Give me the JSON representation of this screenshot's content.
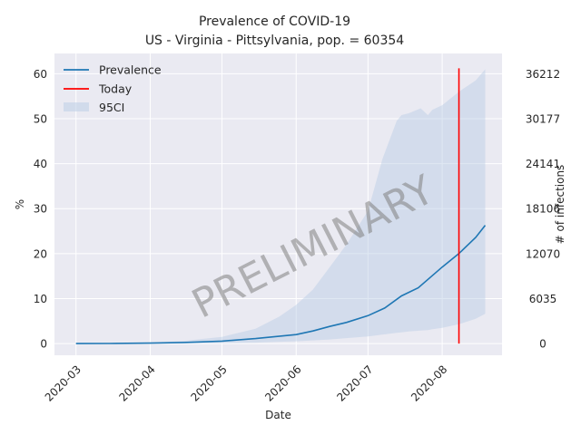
{
  "chart_data": {
    "type": "line",
    "title": "Prevalence of COVID-19",
    "subtitle": "US - Virginia - Pittsylvania, pop. = 60354",
    "xlabel": "Date",
    "ylabel": "%",
    "ylabel_right": "# of infections",
    "xlim": [
      "2020-02-21",
      "2020-08-26"
    ],
    "ylim": [
      -2.6,
      64.5
    ],
    "x_ticks": [
      "2020-03",
      "2020-04",
      "2020-05",
      "2020-06",
      "2020-07",
      "2020-08"
    ],
    "y_ticks": [
      0,
      10,
      20,
      30,
      40,
      50,
      60
    ],
    "y_right_ticks": [
      "0",
      "6035",
      "12070",
      "18106",
      "24141",
      "30177",
      "36212"
    ],
    "grid": true,
    "legend_position": "top-left",
    "colors": {
      "prevalence": "#1f77b4",
      "today": "#ff0000",
      "ci": "#b8cce4",
      "background": "#eaeaf2",
      "grid": "#ffffff"
    },
    "watermark": "PRELIMINARY",
    "series": [
      {
        "name": "Prevalence",
        "kind": "line",
        "x": [
          "2020-03-01",
          "2020-03-15",
          "2020-04-01",
          "2020-04-15",
          "2020-05-01",
          "2020-05-15",
          "2020-06-01",
          "2020-06-08",
          "2020-06-15",
          "2020-06-22",
          "2020-07-01",
          "2020-07-08",
          "2020-07-15",
          "2020-07-22",
          "2020-08-01",
          "2020-08-08",
          "2020-08-15",
          "2020-08-19"
        ],
        "y": [
          0.0,
          0.02,
          0.1,
          0.25,
          0.55,
          1.1,
          2.0,
          2.8,
          3.8,
          4.7,
          6.2,
          7.9,
          10.6,
          12.4,
          17.0,
          20.0,
          23.6,
          26.3
        ]
      },
      {
        "name": "95CI",
        "kind": "band",
        "x": [
          "2020-03-01",
          "2020-03-15",
          "2020-04-01",
          "2020-04-15",
          "2020-05-01",
          "2020-05-15",
          "2020-05-25",
          "2020-06-01",
          "2020-06-08",
          "2020-06-15",
          "2020-06-22",
          "2020-07-01",
          "2020-07-07",
          "2020-07-13",
          "2020-07-15",
          "2020-07-18",
          "2020-07-23",
          "2020-07-26",
          "2020-07-28",
          "2020-08-01",
          "2020-08-08",
          "2020-08-15",
          "2020-08-19"
        ],
        "lower": [
          0.0,
          0.0,
          0.02,
          0.05,
          0.1,
          0.2,
          0.4,
          0.5,
          0.7,
          0.9,
          1.2,
          1.6,
          2.0,
          2.4,
          2.5,
          2.7,
          2.9,
          3.0,
          3.2,
          3.5,
          4.3,
          5.5,
          6.6
        ],
        "upper": [
          0.0,
          0.05,
          0.2,
          0.6,
          1.5,
          3.3,
          6.0,
          8.6,
          12.0,
          17.0,
          22.0,
          29.5,
          41.0,
          49.5,
          50.8,
          51.2,
          52.3,
          50.8,
          52.0,
          53.0,
          56.0,
          58.5,
          61.0
        ]
      }
    ],
    "today": {
      "name": "Today",
      "x": "2020-08-08",
      "y_range": [
        0,
        61.2
      ]
    }
  }
}
